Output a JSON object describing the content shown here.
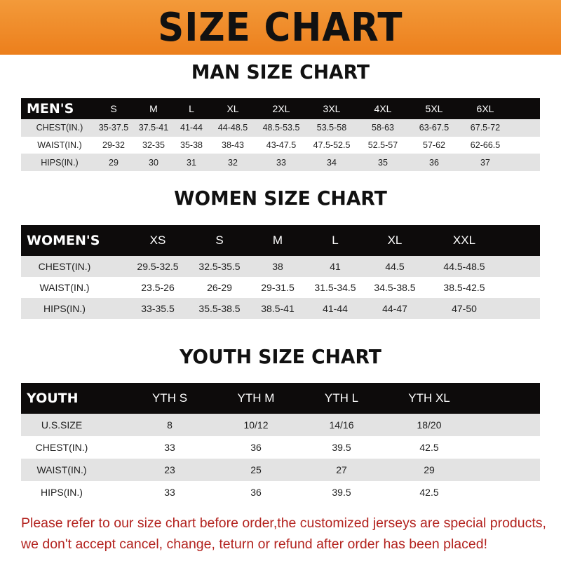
{
  "banner_title": "SIZE CHART",
  "men": {
    "title": "MAN SIZE CHART",
    "header": [
      "MEN'S",
      "S",
      "M",
      "L",
      "XL",
      "2XL",
      "3XL",
      "4XL",
      "5XL",
      "6XL"
    ],
    "rows": [
      [
        "CHEST(IN.)",
        "35-37.5",
        "37.5-41",
        "41-44",
        "44-48.5",
        "48.5-53.5",
        "53.5-58",
        "58-63",
        "63-67.5",
        "67.5-72"
      ],
      [
        "WAIST(IN.)",
        "29-32",
        "32-35",
        "35-38",
        "38-43",
        "43-47.5",
        "47.5-52.5",
        "52.5-57",
        "57-62",
        "62-66.5"
      ],
      [
        "HIPS(IN.)",
        "29",
        "30",
        "31",
        "32",
        "33",
        "34",
        "35",
        "36",
        "37"
      ]
    ]
  },
  "women": {
    "title": "WOMEN SIZE CHART",
    "header": [
      "WOMEN'S",
      "XS",
      "S",
      "M",
      "L",
      "XL",
      "XXL"
    ],
    "rows": [
      [
        "CHEST(IN.)",
        "29.5-32.5",
        "32.5-35.5",
        "38",
        "41",
        "44.5",
        "44.5-48.5"
      ],
      [
        "WAIST(IN.)",
        "23.5-26",
        "26-29",
        "29-31.5",
        "31.5-34.5",
        "34.5-38.5",
        "38.5-42.5"
      ],
      [
        "HIPS(IN.)",
        "33-35.5",
        "35.5-38.5",
        "38.5-41",
        "41-44",
        "44-47",
        "47-50"
      ]
    ]
  },
  "youth": {
    "title": "YOUTH SIZE CHART",
    "header": [
      "YOUTH",
      "YTH S",
      "YTH M",
      "YTH L",
      "YTH XL"
    ],
    "rows": [
      [
        "U.S.SIZE",
        "8",
        "10/12",
        "14/16",
        "18/20"
      ],
      [
        "CHEST(IN.)",
        "33",
        "36",
        "39.5",
        "42.5"
      ],
      [
        "WAIST(IN.)",
        "23",
        "25",
        "27",
        "29"
      ],
      [
        "HIPS(IN.)",
        "33",
        "36",
        "39.5",
        "42.5"
      ]
    ]
  },
  "notice": {
    "line1": "Please refer to our size chart before order,the customized jerseys are special products,",
    "line2": "we don't accept cancel, change, teturn or refund after order has been placed!"
  },
  "colors": {
    "banner": "#ec7f1c",
    "header_row": "#0d0b0b",
    "stripe": "#e3e3e3",
    "notice": "#b3231f"
  }
}
